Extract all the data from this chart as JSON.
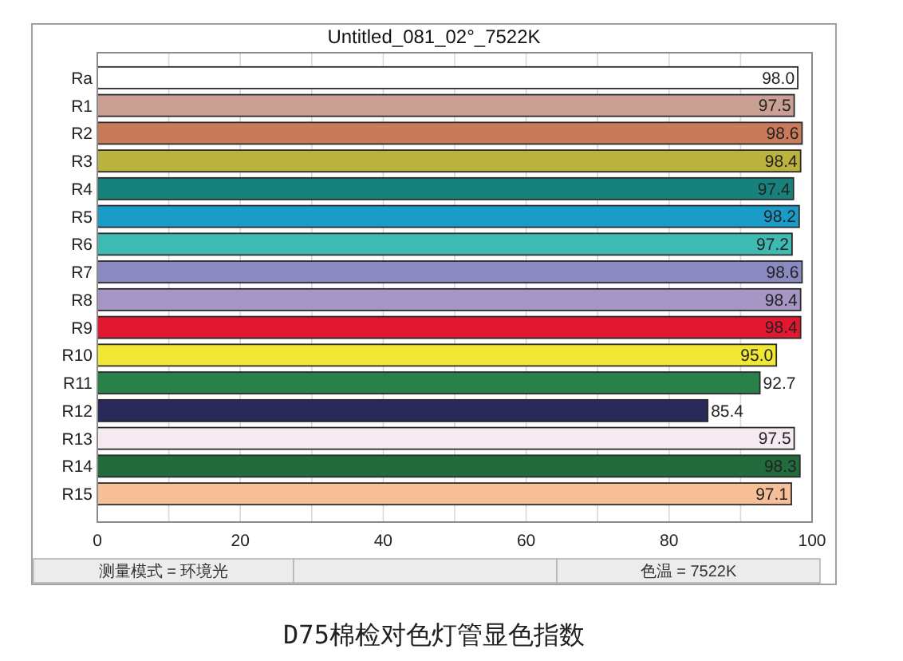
{
  "chart_data": {
    "type": "bar",
    "orientation": "horizontal",
    "title": "Untitled_081_02°_7522K",
    "categories": [
      "Ra",
      "R1",
      "R2",
      "R3",
      "R4",
      "R5",
      "R6",
      "R7",
      "R8",
      "R9",
      "R10",
      "R11",
      "R12",
      "R13",
      "R14",
      "R15"
    ],
    "values": [
      98.0,
      97.5,
      98.6,
      98.4,
      97.4,
      98.2,
      97.2,
      98.6,
      98.4,
      98.4,
      95.0,
      92.7,
      85.4,
      97.5,
      98.3,
      97.1
    ],
    "value_labels": [
      "98.0",
      "97.5",
      "98.6",
      "98.4",
      "97.4",
      "98.2",
      "97.2",
      "98.6",
      "98.4",
      "98.4",
      "95.0",
      "92.7",
      "85.4",
      "97.5",
      "98.3",
      "97.1"
    ],
    "colors": [
      "#ffffff",
      "#c9a093",
      "#c97a5a",
      "#bcb23e",
      "#17827c",
      "#1a9cc9",
      "#3fbab3",
      "#8b8ac0",
      "#a596c6",
      "#e3172f",
      "#f2e834",
      "#2a8049",
      "#2a2a5a",
      "#f5eaf2",
      "#236b3c",
      "#f7bf98"
    ],
    "xlim": [
      0,
      100
    ],
    "xticks": [
      0,
      {
        "value": 10,
        "label": null
      },
      20,
      {
        "value": 30,
        "label": null
      },
      40,
      {
        "value": 50,
        "label": null
      },
      60,
      {
        "value": 70,
        "label": null
      },
      80,
      {
        "value": 90,
        "label": null
      },
      100
    ],
    "grid": "x",
    "annotations": [
      "测量模式 = 环境光",
      "色温 = 7522K",
      "D75棉检对色灯管显色指数"
    ]
  }
}
